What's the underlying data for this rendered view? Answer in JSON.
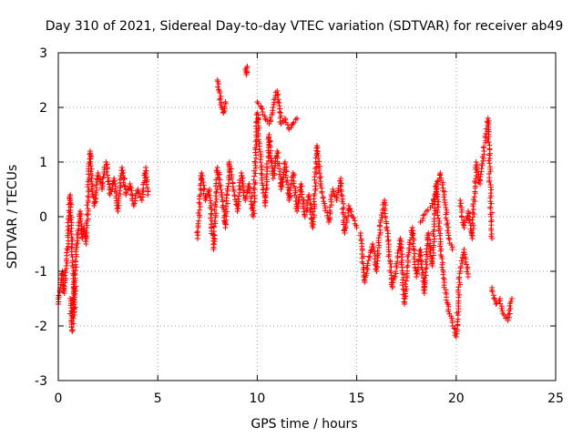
{
  "chart_data": {
    "type": "scatter",
    "title": "Day 310 of 2021, Sidereal Day-to-day VTEC variation (SDTVAR) for receiver ab49",
    "xlabel": "GPS time / hours",
    "ylabel": "SDTVAR / TECUs",
    "xlim": [
      0,
      25
    ],
    "ylim": [
      -3,
      3
    ],
    "xticks": [
      "0",
      "5",
      "10",
      "15",
      "20",
      "25"
    ],
    "yticks": [
      "-3",
      "-2",
      "-1",
      "0",
      "1",
      "2",
      "3"
    ],
    "grid": true,
    "marker": "plus",
    "series_color": "#ff0000",
    "segments": [
      {
        "x": [
          0.0,
          0.1,
          0.2,
          0.3,
          0.4,
          0.5,
          0.6,
          0.7,
          0.8,
          0.9,
          1.0,
          1.1,
          1.2,
          1.3,
          1.4,
          1.5,
          1.6,
          1.7,
          1.8,
          1.9,
          2.0,
          2.2,
          2.4,
          2.6,
          2.8,
          3.0,
          3.2,
          3.4,
          3.6,
          3.8,
          4.0,
          4.2,
          4.4,
          4.5
        ],
        "y": [
          -1.6,
          -1.3,
          -1.0,
          -1.4,
          -0.9,
          -0.3,
          0.4,
          -0.5,
          -1.8,
          -0.6,
          -0.3,
          0.1,
          -0.4,
          -0.2,
          -0.5,
          0.3,
          1.2,
          0.6,
          0.2,
          0.4,
          0.8,
          0.5,
          1.0,
          0.4,
          0.7,
          0.1,
          0.9,
          0.4,
          0.6,
          0.2,
          0.5,
          0.3,
          0.9,
          0.4
        ]
      },
      {
        "x": [
          0.6,
          0.65,
          0.7,
          0.75,
          0.8
        ],
        "y": [
          -1.5,
          -1.9,
          -2.1,
          -1.7,
          -1.3
        ]
      },
      {
        "x": [
          7.0,
          7.2,
          7.4,
          7.6,
          7.8,
          8.0,
          8.2,
          8.4,
          8.6,
          8.8,
          9.0,
          9.2,
          9.4,
          9.6,
          9.8,
          10.0,
          10.2,
          10.4,
          10.6,
          10.8,
          11.0,
          11.2,
          11.4,
          11.6,
          11.8,
          12.0,
          12.2,
          12.4,
          12.6,
          12.8,
          13.0,
          13.2,
          13.4,
          13.6,
          13.8,
          14.0,
          14.2,
          14.4,
          14.6,
          14.8,
          15.0
        ],
        "y": [
          -0.4,
          0.8,
          0.3,
          0.5,
          -0.6,
          0.9,
          0.4,
          -0.2,
          1.0,
          0.5,
          0.1,
          0.8,
          0.3,
          0.6,
          0.0,
          1.9,
          0.9,
          0.2,
          1.5,
          0.7,
          1.2,
          0.5,
          1.0,
          0.3,
          0.8,
          0.1,
          0.6,
          0.0,
          0.4,
          -0.2,
          1.3,
          0.6,
          0.2,
          -0.1,
          0.5,
          0.3,
          0.7,
          -0.3,
          0.2,
          0.0,
          -0.2
        ]
      },
      {
        "x": [
          8.0,
          8.1,
          8.2,
          8.3,
          8.4
        ],
        "y": [
          2.5,
          2.3,
          2.0,
          1.9,
          2.1
        ]
      },
      {
        "x": [
          9.4,
          9.45,
          9.5
        ],
        "y": [
          2.7,
          2.6,
          2.75
        ]
      },
      {
        "x": [
          10.0,
          10.2,
          10.4,
          10.6,
          10.8,
          11.0,
          11.2,
          11.4,
          11.6,
          11.8,
          12.0
        ],
        "y": [
          2.1,
          2.0,
          1.8,
          1.7,
          2.0,
          2.3,
          1.7,
          1.8,
          1.6,
          1.7,
          1.8
        ]
      },
      {
        "x": [
          15.2,
          15.4,
          15.6,
          15.8,
          16.0,
          16.2,
          16.4,
          16.6,
          16.8,
          17.0,
          17.2,
          17.4,
          17.6,
          17.8,
          18.0,
          18.2,
          18.4,
          18.6,
          18.8,
          19.0,
          19.2,
          19.4,
          19.6,
          19.8,
          20.0,
          20.2,
          20.4,
          20.6
        ],
        "y": [
          -0.3,
          -1.2,
          -0.8,
          -0.5,
          -1.0,
          -0.1,
          0.3,
          -0.6,
          -1.3,
          -0.9,
          -0.4,
          -1.6,
          -0.7,
          -0.2,
          -1.1,
          -0.6,
          -1.4,
          -0.3,
          -0.9,
          0.6,
          -0.5,
          -1.2,
          -1.7,
          -1.9,
          -2.2,
          -1.0,
          -0.6,
          -1.1
        ]
      },
      {
        "x": [
          18.2,
          18.5,
          18.8,
          19.0,
          19.2,
          19.4,
          19.6,
          19.8
        ],
        "y": [
          -0.1,
          0.1,
          0.2,
          0.5,
          0.8,
          0.4,
          -0.3,
          -0.6
        ]
      },
      {
        "x": [
          20.2,
          20.4,
          20.6,
          20.8,
          21.0,
          21.2,
          21.4,
          21.6,
          21.8
        ],
        "y": [
          0.3,
          -0.2,
          0.1,
          -0.4,
          1.0,
          0.6,
          1.2,
          1.8,
          -0.4
        ]
      },
      {
        "x": [
          21.8,
          22.0,
          22.2,
          22.4,
          22.6,
          22.8
        ],
        "y": [
          -1.3,
          -1.6,
          -1.5,
          -1.8,
          -1.9,
          -1.5
        ]
      }
    ]
  }
}
